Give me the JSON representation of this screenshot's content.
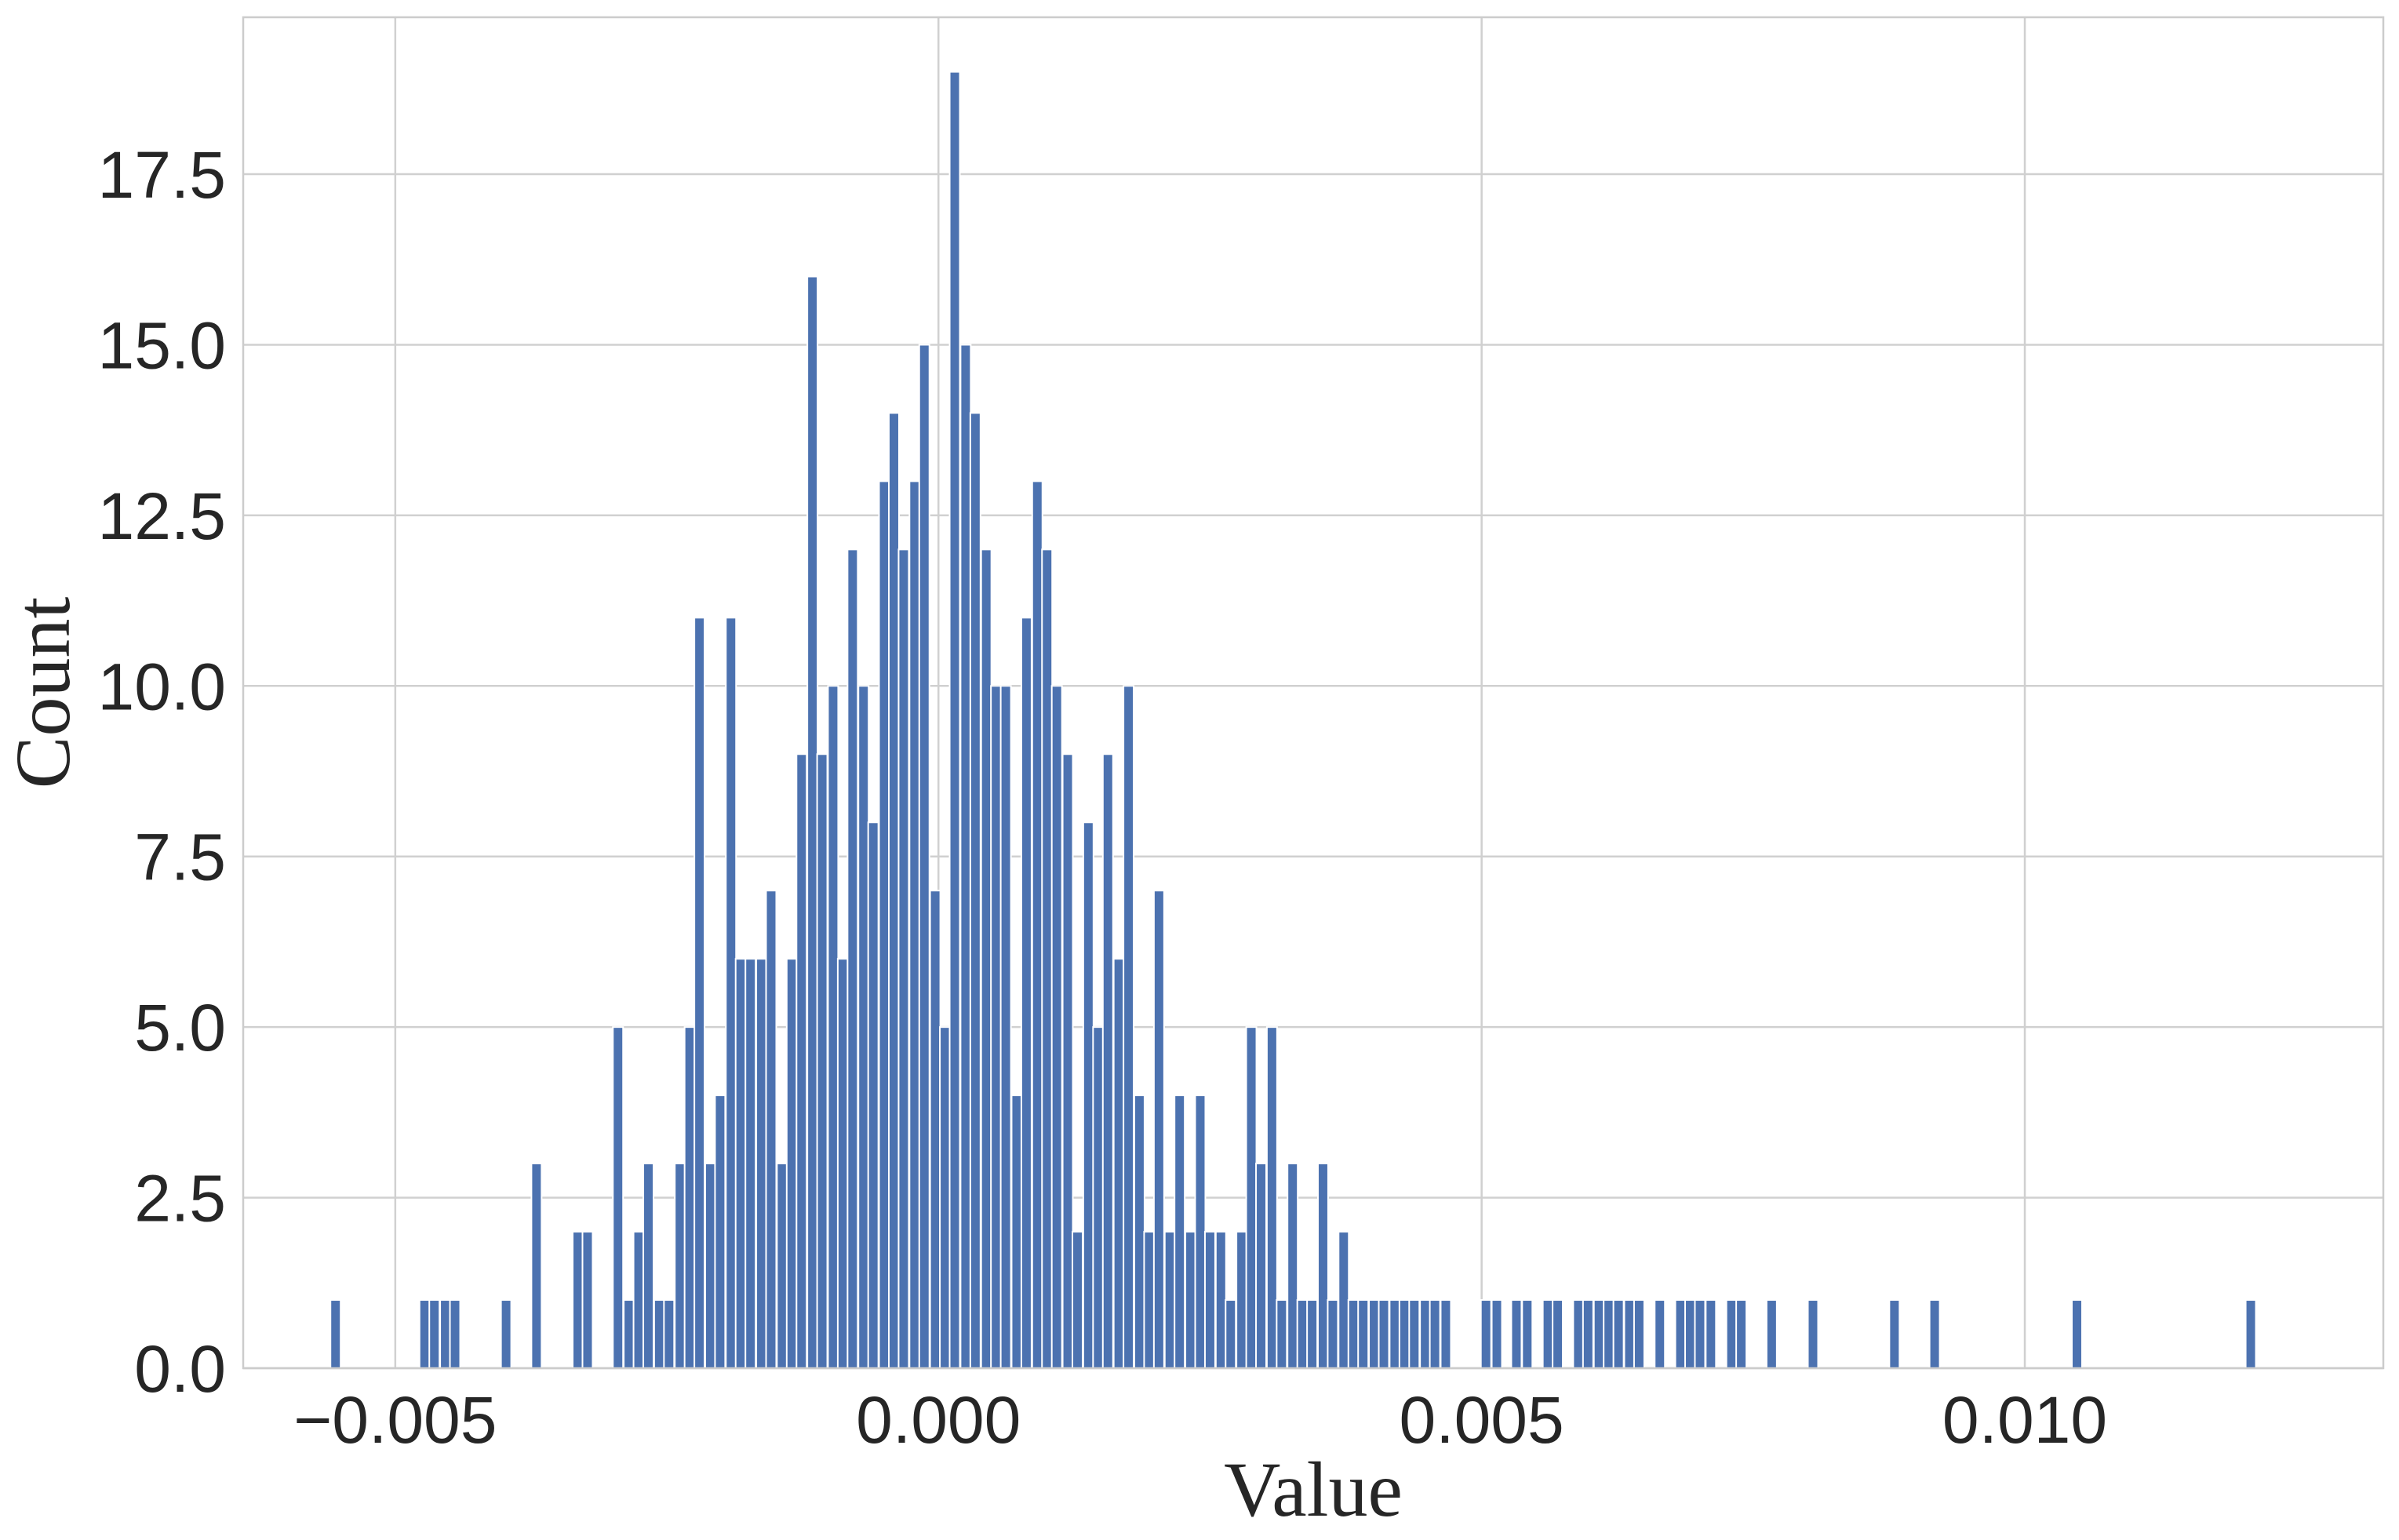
{
  "chart_data": {
    "type": "bar",
    "title": "",
    "xlabel": "Value",
    "ylabel": "Count",
    "xlim": [
      -0.0064,
      0.0133
    ],
    "ylim": [
      0,
      19.8
    ],
    "grid": true,
    "xticks": [
      -0.005,
      0.0,
      0.005,
      0.01
    ],
    "xtick_labels": [
      "−0.005",
      "0.000",
      "0.005",
      "0.010"
    ],
    "yticks": [
      0,
      2.5,
      5.0,
      7.5,
      10.0,
      12.5,
      15.0,
      17.5
    ],
    "ytick_labels": [
      "0.0",
      "2.5",
      "5.0",
      "7.5",
      "10.0",
      "12.5",
      "15.0",
      "17.5"
    ],
    "bin_width": 9.38e-05,
    "x": [
      -0.00555,
      -0.00473,
      -0.00464,
      -0.00454,
      -0.00445,
      -0.00398,
      -0.0037,
      -0.00332,
      -0.00323,
      -0.00295,
      -0.00285,
      -0.00276,
      -0.00267,
      -0.00257,
      -0.00248,
      -0.00238,
      -0.00229,
      -0.0022,
      -0.0021,
      -0.00201,
      -0.00191,
      -0.00182,
      -0.00173,
      -0.00163,
      -0.00154,
      -0.00144,
      -0.00135,
      -0.00126,
      -0.00116,
      -0.00107,
      -0.00097,
      -0.00088,
      -0.00079,
      -0.00069,
      -0.0006,
      -0.0005,
      -0.00041,
      -0.00032,
      -0.00022,
      -0.00013,
      -3e-05,
      6e-05,
      0.00015,
      0.00025,
      0.00034,
      0.00044,
      0.00053,
      0.00062,
      0.00072,
      0.00081,
      0.00091,
      0.001,
      0.00109,
      0.00119,
      0.00128,
      0.00138,
      0.00147,
      0.00156,
      0.00166,
      0.00175,
      0.00185,
      0.00194,
      0.00203,
      0.00213,
      0.00222,
      0.00232,
      0.00241,
      0.0025,
      0.0026,
      0.00269,
      0.00279,
      0.00288,
      0.00297,
      0.00307,
      0.00316,
      0.00326,
      0.00335,
      0.00344,
      0.00354,
      0.00363,
      0.00373,
      0.00382,
      0.00391,
      0.00401,
      0.0041,
      0.0042,
      0.00429,
      0.00438,
      0.00448,
      0.00457,
      0.00467,
      0.00504,
      0.00514,
      0.00532,
      0.00542,
      0.00561,
      0.0057,
      0.00589,
      0.00598,
      0.00608,
      0.00617,
      0.00626,
      0.00636,
      0.00645,
      0.00664,
      0.00683,
      0.00692,
      0.00701,
      0.00711,
      0.0073,
      0.00739,
      0.00767,
      0.00805,
      0.0088,
      0.00917,
      0.01048,
      0.01208
    ],
    "values": [
      1,
      1,
      1,
      1,
      1,
      1,
      3,
      2,
      2,
      5,
      1,
      2,
      3,
      1,
      1,
      3,
      5,
      11,
      3,
      4,
      11,
      6,
      6,
      6,
      7,
      3,
      6,
      9,
      16,
      9,
      10,
      6,
      12,
      10,
      8,
      13,
      14,
      12,
      13,
      15,
      7,
      5,
      19,
      15,
      14,
      12,
      10,
      10,
      4,
      11,
      13,
      12,
      10,
      9,
      2,
      8,
      5,
      9,
      6,
      10,
      4,
      2,
      7,
      2,
      4,
      2,
      4,
      2,
      2,
      1,
      2,
      5,
      3,
      5,
      1,
      3,
      1,
      1,
      3,
      1,
      2,
      1,
      1,
      1,
      1,
      1,
      1,
      1,
      1,
      1,
      1,
      1,
      1,
      1,
      1,
      1,
      1,
      1,
      1,
      1,
      1,
      1,
      1,
      1,
      1,
      1,
      1,
      1,
      1,
      1,
      1,
      1,
      1,
      1,
      1,
      1,
      1
    ]
  }
}
